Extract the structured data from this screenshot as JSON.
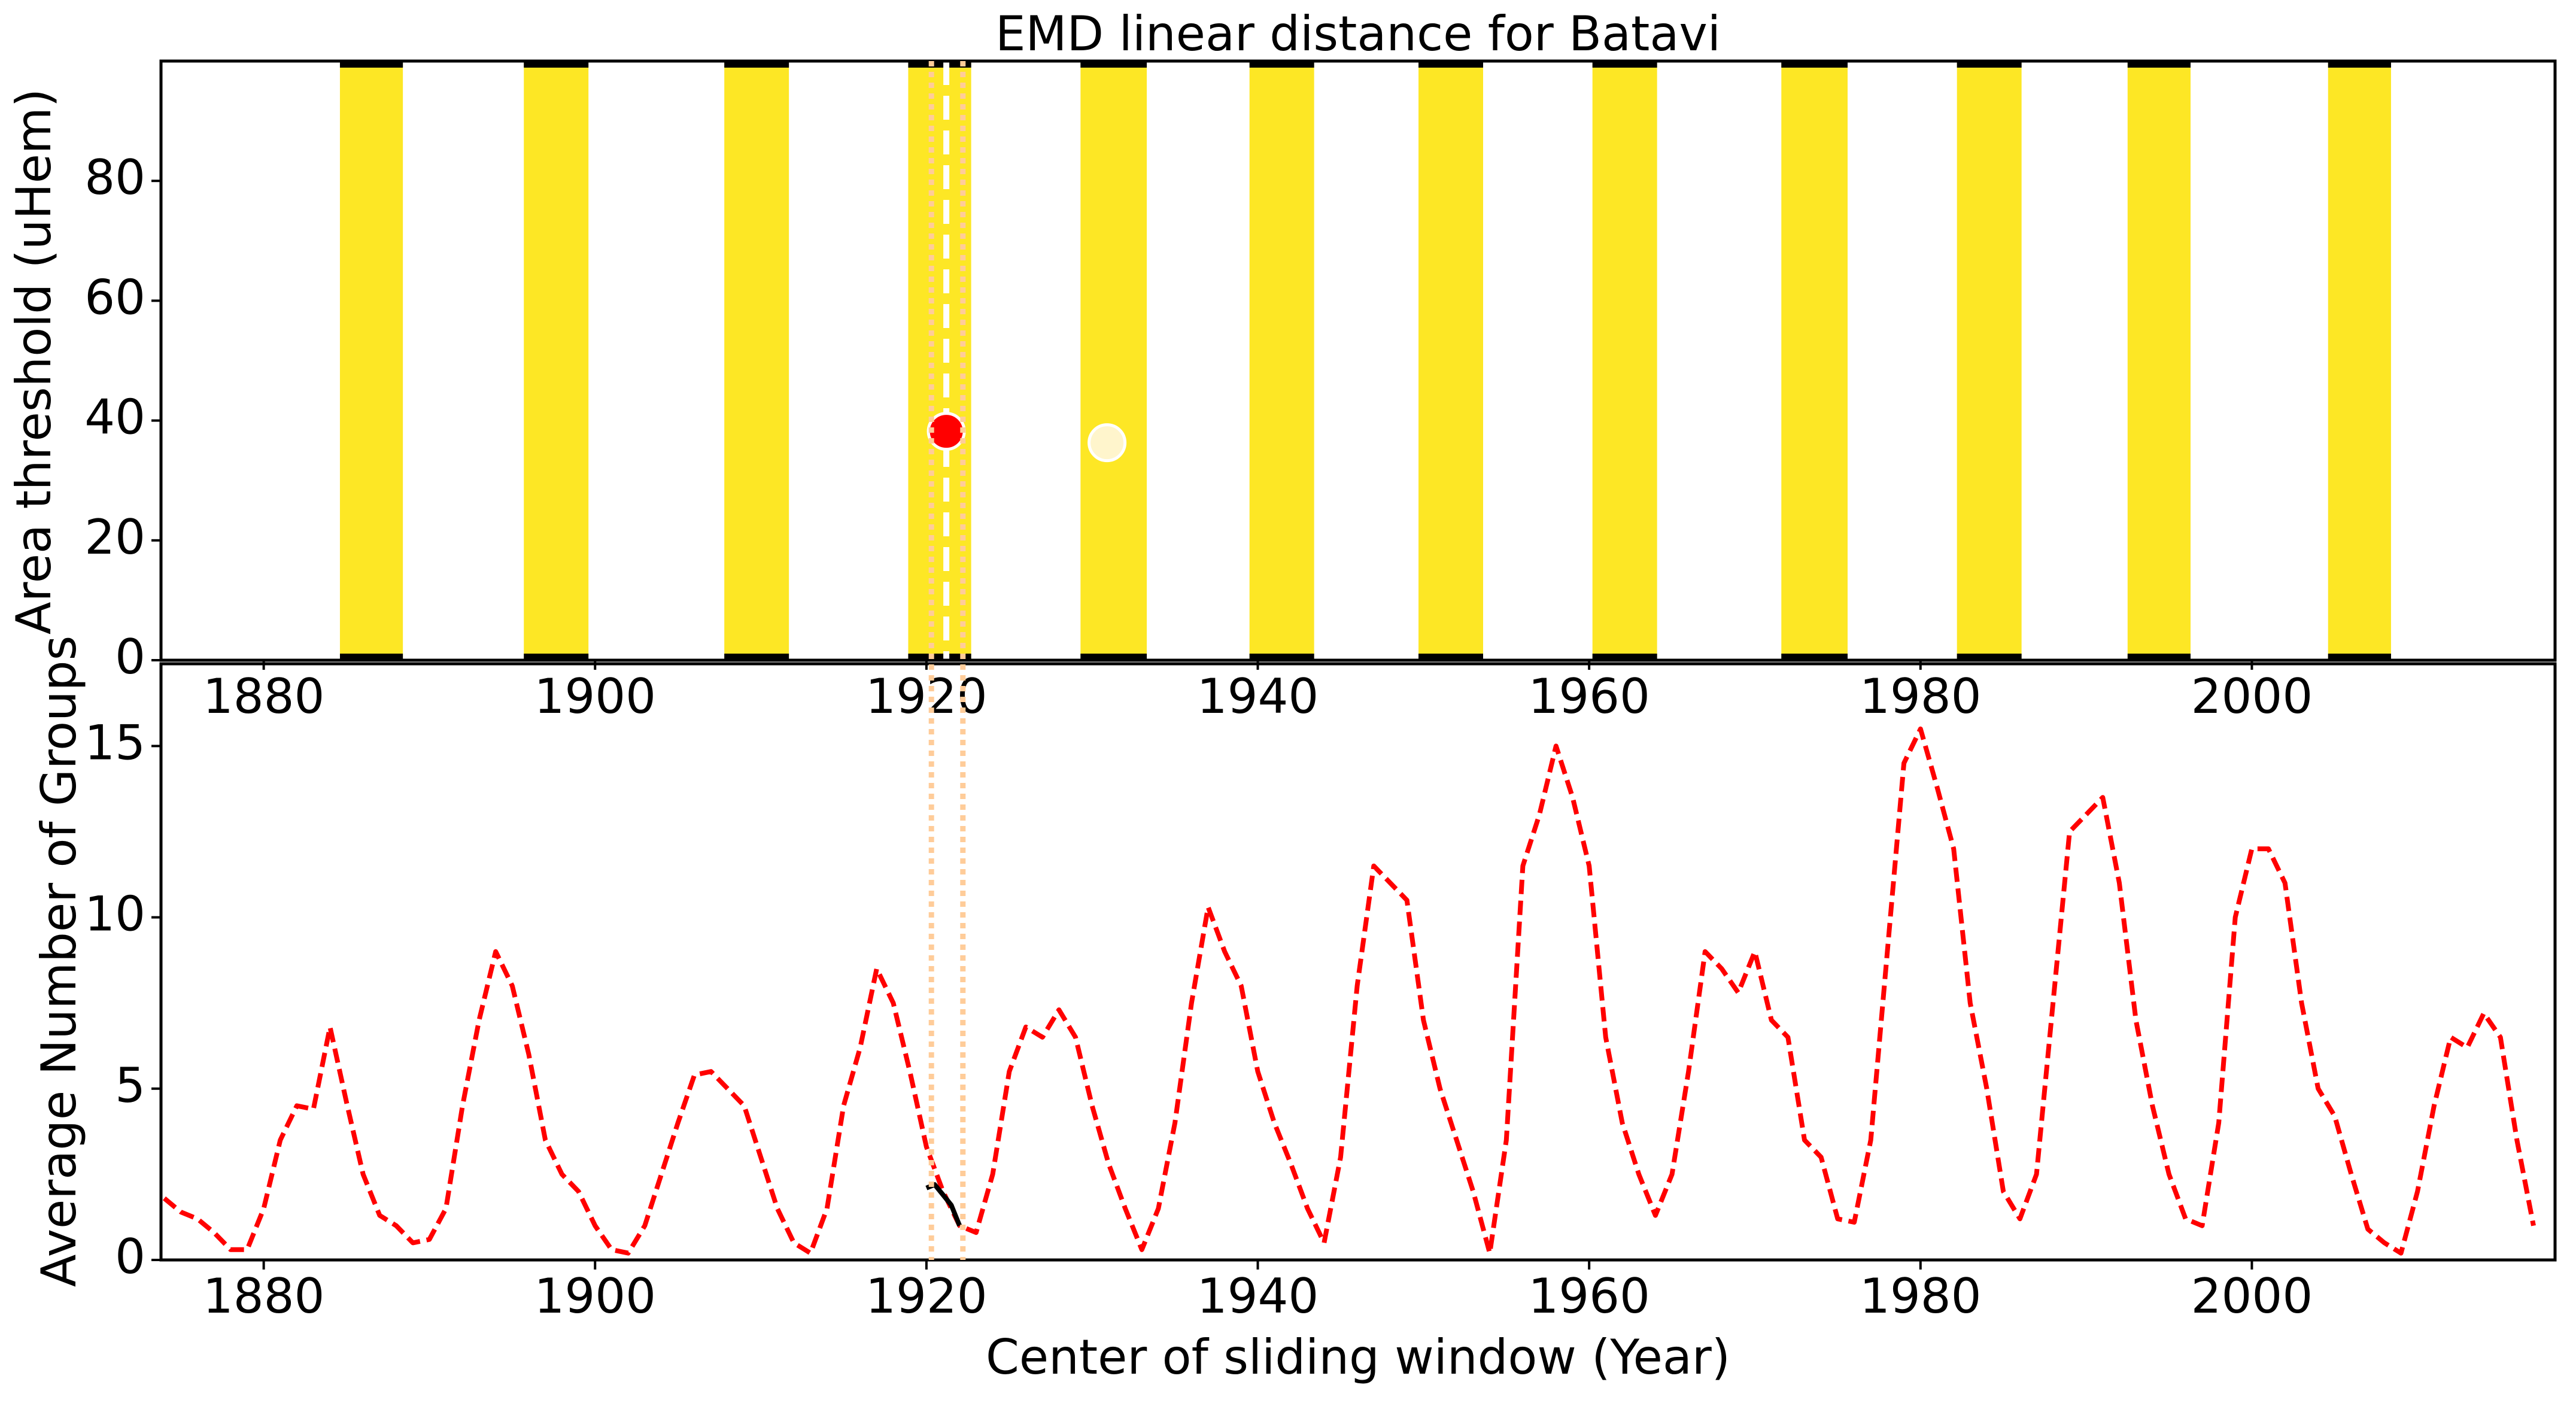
{
  "chart_data": [
    {
      "type": "bands",
      "title": "EMD linear distance for Batavi",
      "y_label": "Area threshold (uHem)",
      "xlim": [
        1873.8,
        2018.3
      ],
      "ylim": [
        0,
        100
      ],
      "xticks": [
        1880,
        1900,
        1920,
        1940,
        1960,
        1980,
        2000
      ],
      "yticks": [
        0,
        20,
        40,
        60,
        80
      ],
      "band_color": "#fde725",
      "band_edge_color": "#000000",
      "bands": [
        [
          1884.6,
          1888.4
        ],
        [
          1895.7,
          1899.6
        ],
        [
          1907.8,
          1911.7
        ],
        [
          1918.9,
          1922.7
        ],
        [
          1929.3,
          1933.3
        ],
        [
          1939.5,
          1943.4
        ],
        [
          1949.7,
          1953.6
        ],
        [
          1960.2,
          1964.1
        ],
        [
          1971.6,
          1975.6
        ],
        [
          1982.2,
          1986.1
        ],
        [
          1992.5,
          1996.3
        ],
        [
          2004.6,
          2008.4
        ]
      ],
      "points": {
        "x": [
          1921.2,
          1930.9
        ],
        "values": [
          38.2,
          36.3
        ],
        "colors": [
          "#ff0000",
          "#fff5cc"
        ]
      },
      "vline": {
        "x": 1921.2,
        "color": "#ffffff"
      },
      "window": {
        "x": [
          1920.3,
          1922.2
        ],
        "color": "#ffcc99"
      }
    },
    {
      "type": "line",
      "x_label": "Center of sliding window (Year)",
      "y_label": "Average Number of Groups",
      "xlim": [
        1873.8,
        2018.3
      ],
      "ylim": [
        0,
        17.4
      ],
      "xticks": [
        1880,
        1900,
        1920,
        1940,
        1960,
        1980,
        2000
      ],
      "yticks": [
        0,
        5,
        10,
        15
      ],
      "series": [
        {
          "color": "#ff0000",
          "dashed": true,
          "x": [
            1874,
            1875,
            1876,
            1877,
            1878,
            1879,
            1880,
            1881,
            1882,
            1883,
            1884,
            1885,
            1886,
            1887,
            1888,
            1889,
            1890,
            1891,
            1892,
            1893,
            1894,
            1895,
            1896,
            1897,
            1898,
            1899,
            1900,
            1901,
            1902,
            1903,
            1904,
            1905,
            1906,
            1907,
            1908,
            1909,
            1910,
            1911,
            1912,
            1913,
            1914,
            1915,
            1916,
            1917,
            1918,
            1919,
            1920,
            1921,
            1922,
            1923,
            1924,
            1925,
            1926,
            1927,
            1928,
            1929,
            1930,
            1931,
            1932,
            1933,
            1934,
            1935,
            1936,
            1937,
            1938,
            1939,
            1940,
            1941,
            1942,
            1943,
            1944,
            1945,
            1946,
            1947,
            1948,
            1949,
            1950,
            1951,
            1952,
            1953,
            1954,
            1955,
            1956,
            1957,
            1958,
            1959,
            1960,
            1961,
            1962,
            1963,
            1964,
            1965,
            1966,
            1967,
            1968,
            1969,
            1970,
            1971,
            1972,
            1973,
            1974,
            1975,
            1976,
            1977,
            1978,
            1979,
            1980,
            1981,
            1982,
            1983,
            1984,
            1985,
            1986,
            1987,
            1988,
            1989,
            1990,
            1991,
            1992,
            1993,
            1994,
            1995,
            1996,
            1997,
            1998,
            1999,
            2000,
            2001,
            2002,
            2003,
            2004,
            2005,
            2006,
            2007,
            2008,
            2009,
            2010,
            2011,
            2012,
            2013,
            2014,
            2015,
            2016,
            2017
          ],
          "values": [
            1.8,
            1.4,
            1.2,
            0.8,
            0.3,
            0.3,
            1.5,
            3.5,
            4.5,
            4.4,
            6.8,
            4.6,
            2.5,
            1.3,
            1.0,
            0.5,
            0.6,
            1.5,
            4.5,
            7.0,
            9.0,
            8.0,
            6.0,
            3.5,
            2.5,
            2.0,
            1.0,
            0.3,
            0.2,
            1.0,
            2.5,
            4.0,
            5.4,
            5.5,
            5.0,
            4.5,
            3.0,
            1.5,
            0.5,
            0.2,
            1.5,
            4.5,
            6.2,
            8.5,
            7.5,
            5.5,
            3.3,
            2.0,
            1.0,
            0.8,
            2.5,
            5.5,
            6.8,
            6.5,
            7.3,
            6.5,
            4.5,
            2.8,
            1.5,
            0.3,
            1.5,
            4.0,
            7.5,
            10.3,
            9.0,
            8.0,
            5.5,
            4.0,
            2.8,
            1.5,
            0.5,
            3.0,
            8.0,
            11.5,
            11.0,
            10.5,
            7.0,
            5.0,
            3.5,
            2.0,
            0.2,
            3.5,
            11.5,
            13.0,
            15.0,
            13.5,
            11.5,
            6.5,
            4.0,
            2.5,
            1.3,
            2.5,
            5.5,
            9.0,
            8.5,
            7.8,
            9.0,
            7.0,
            6.5,
            3.5,
            3.0,
            1.2,
            1.1,
            3.5,
            9.0,
            14.5,
            15.5,
            13.8,
            12.0,
            7.5,
            5.0,
            2.0,
            1.2,
            2.5,
            7.5,
            12.5,
            13.0,
            13.5,
            11.0,
            7.0,
            4.5,
            2.5,
            1.2,
            1.0,
            4.0,
            10.0,
            12.0,
            12.0,
            11.0,
            7.5,
            5.0,
            4.2,
            2.5,
            0.9,
            0.5,
            0.2,
            2.0,
            4.5,
            6.5,
            6.2,
            7.2,
            6.5,
            3.5,
            1.0
          ]
        },
        {
          "color": "#000000",
          "dashed": false,
          "x": [
            1920,
            1920.5,
            1921,
            1921.5,
            1922
          ],
          "values": [
            2.1,
            2.2,
            1.9,
            1.6,
            1.0
          ]
        }
      ]
    }
  ]
}
